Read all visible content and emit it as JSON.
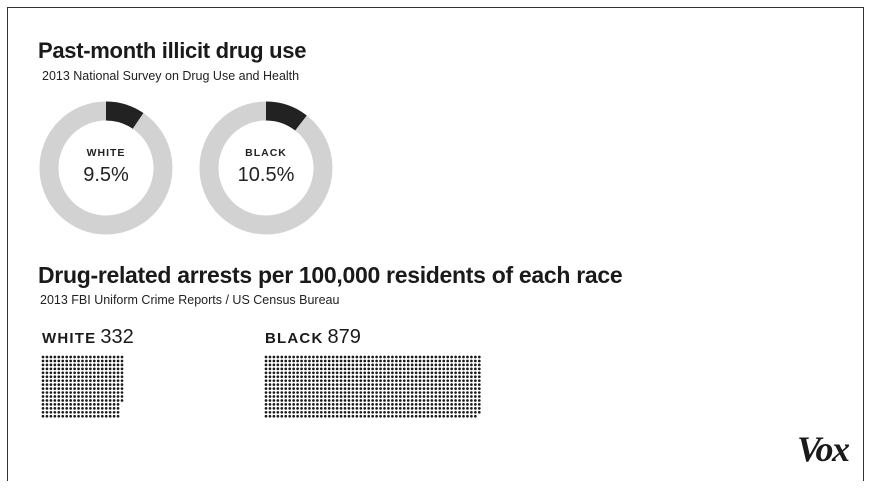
{
  "title_top": "Past-month illicit drug use",
  "subtitle_top": "2013 National Survey on Drug Use and Health",
  "title_bottom": "Drug-related arrests per 100,000 residents of each race",
  "subtitle_bottom": "2013 FBI Uniform Crime Reports / US Census Bureau",
  "brand": "Vox",
  "colors": {
    "filled": "#222222",
    "track": "#d2d2d2",
    "dot": "#1a1a1a"
  },
  "chart_data": [
    {
      "type": "pie",
      "title": "Past-month illicit drug use",
      "subtitle": "2013 National Survey on Drug Use and Health",
      "series": [
        {
          "name": "WHITE",
          "label": "9.5%",
          "value": 9.5
        },
        {
          "name": "BLACK",
          "label": "10.5%",
          "value": 10.5
        }
      ]
    },
    {
      "type": "bar",
      "title": "Drug-related arrests per 100,000 residents of each race",
      "subtitle": "2013 FBI Uniform Crime Reports / US Census Bureau",
      "categories": [
        "WHITE",
        "BLACK"
      ],
      "values": [
        332,
        879
      ],
      "value_labels": [
        "332",
        "879"
      ]
    }
  ]
}
